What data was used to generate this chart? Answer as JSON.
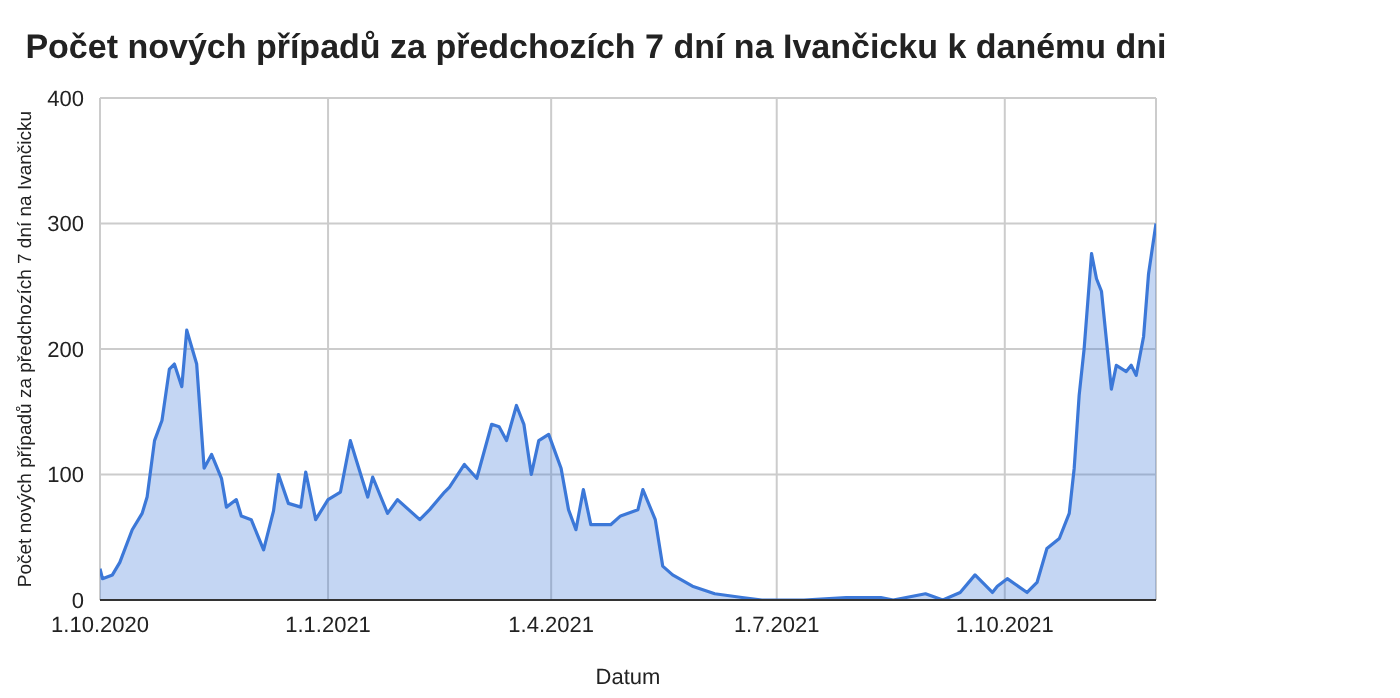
{
  "chart_data": {
    "type": "area",
    "title": "Počet nových případů za předchozích 7 dní na Ivančicku k danému dni",
    "xlabel": "Datum",
    "ylabel": "Počet nových případů za předchozích 7 dní na Ivančicku",
    "x": [
      "2020-10-01",
      "2020-10-02",
      "2020-10-06",
      "2020-10-09",
      "2020-10-14",
      "2020-10-18",
      "2020-10-20",
      "2020-10-23",
      "2020-10-26",
      "2020-10-29",
      "2020-10-31",
      "2020-11-03",
      "2020-11-05",
      "2020-11-09",
      "2020-11-12",
      "2020-11-15",
      "2020-11-19",
      "2020-11-21",
      "2020-11-25",
      "2020-11-27",
      "2020-12-01",
      "2020-12-06",
      "2020-12-10",
      "2020-12-12",
      "2020-12-16",
      "2020-12-21",
      "2020-12-23",
      "2020-12-27",
      "2021-01-01",
      "2021-01-06",
      "2021-01-10",
      "2021-01-12",
      "2021-01-17",
      "2021-01-19",
      "2021-01-25",
      "2021-01-29",
      "2021-02-07",
      "2021-02-11",
      "2021-02-17",
      "2021-02-19",
      "2021-02-25",
      "2021-03-02",
      "2021-03-08",
      "2021-03-11",
      "2021-03-14",
      "2021-03-18",
      "2021-03-21",
      "2021-03-24",
      "2021-03-27",
      "2021-03-31",
      "2021-04-05",
      "2021-04-08",
      "2021-04-11",
      "2021-04-14",
      "2021-04-17",
      "2021-04-25",
      "2021-04-29",
      "2021-05-06",
      "2021-05-08",
      "2021-05-13",
      "2021-05-16",
      "2021-05-20",
      "2021-05-28",
      "2021-06-06",
      "2021-06-17",
      "2021-06-25",
      "2021-07-12",
      "2021-07-29",
      "2021-08-12",
      "2021-08-17",
      "2021-08-30",
      "2021-09-06",
      "2021-09-13",
      "2021-09-19",
      "2021-09-26",
      "2021-09-28",
      "2021-10-02",
      "2021-10-10",
      "2021-10-14",
      "2021-10-18",
      "2021-10-23",
      "2021-10-27",
      "2021-10-29",
      "2021-10-31",
      "2021-11-02",
      "2021-11-05",
      "2021-11-07",
      "2021-11-09",
      "2021-11-13",
      "2021-11-15",
      "2021-11-19",
      "2021-11-21",
      "2021-11-23",
      "2021-11-26",
      "2021-11-28",
      "2021-12-01"
    ],
    "series": [
      {
        "color": "#3c78d8",
        "values": [
          25,
          17,
          20,
          30,
          56,
          69,
          82,
          127,
          143,
          184,
          188,
          170,
          215,
          188,
          105,
          116,
          97,
          74,
          80,
          67,
          64,
          40,
          71,
          100,
          77,
          74,
          102,
          64,
          80,
          86,
          127,
          114,
          82,
          98,
          69,
          80,
          64,
          72,
          86,
          90,
          108,
          97,
          140,
          138,
          127,
          155,
          140,
          100,
          127,
          132,
          105,
          72,
          56,
          88,
          60,
          60,
          67,
          72,
          88,
          64,
          27,
          20,
          11,
          5,
          2,
          0,
          0,
          2,
          2,
          0,
          5,
          0,
          6,
          20,
          6,
          11,
          17,
          6,
          14,
          41,
          49,
          69,
          105,
          163,
          200,
          276,
          256,
          246,
          168,
          187,
          182,
          187,
          179,
          210,
          260,
          300
        ]
      }
    ],
    "xlim": [
      "2020-10-01",
      "2021-12-01"
    ],
    "xticks": [
      {
        "value": "2020-10-01",
        "label": "1.10.2020"
      },
      {
        "value": "2021-01-01",
        "label": "1.1.2021"
      },
      {
        "value": "2021-04-01",
        "label": "1.4.2021"
      },
      {
        "value": "2021-07-01",
        "label": "1.7.2021"
      },
      {
        "value": "2021-10-01",
        "label": "1.10.2021"
      }
    ],
    "ylim": [
      0,
      400
    ],
    "yticks": [
      0,
      100,
      200,
      300,
      400
    ],
    "grid": true,
    "legend": false
  }
}
